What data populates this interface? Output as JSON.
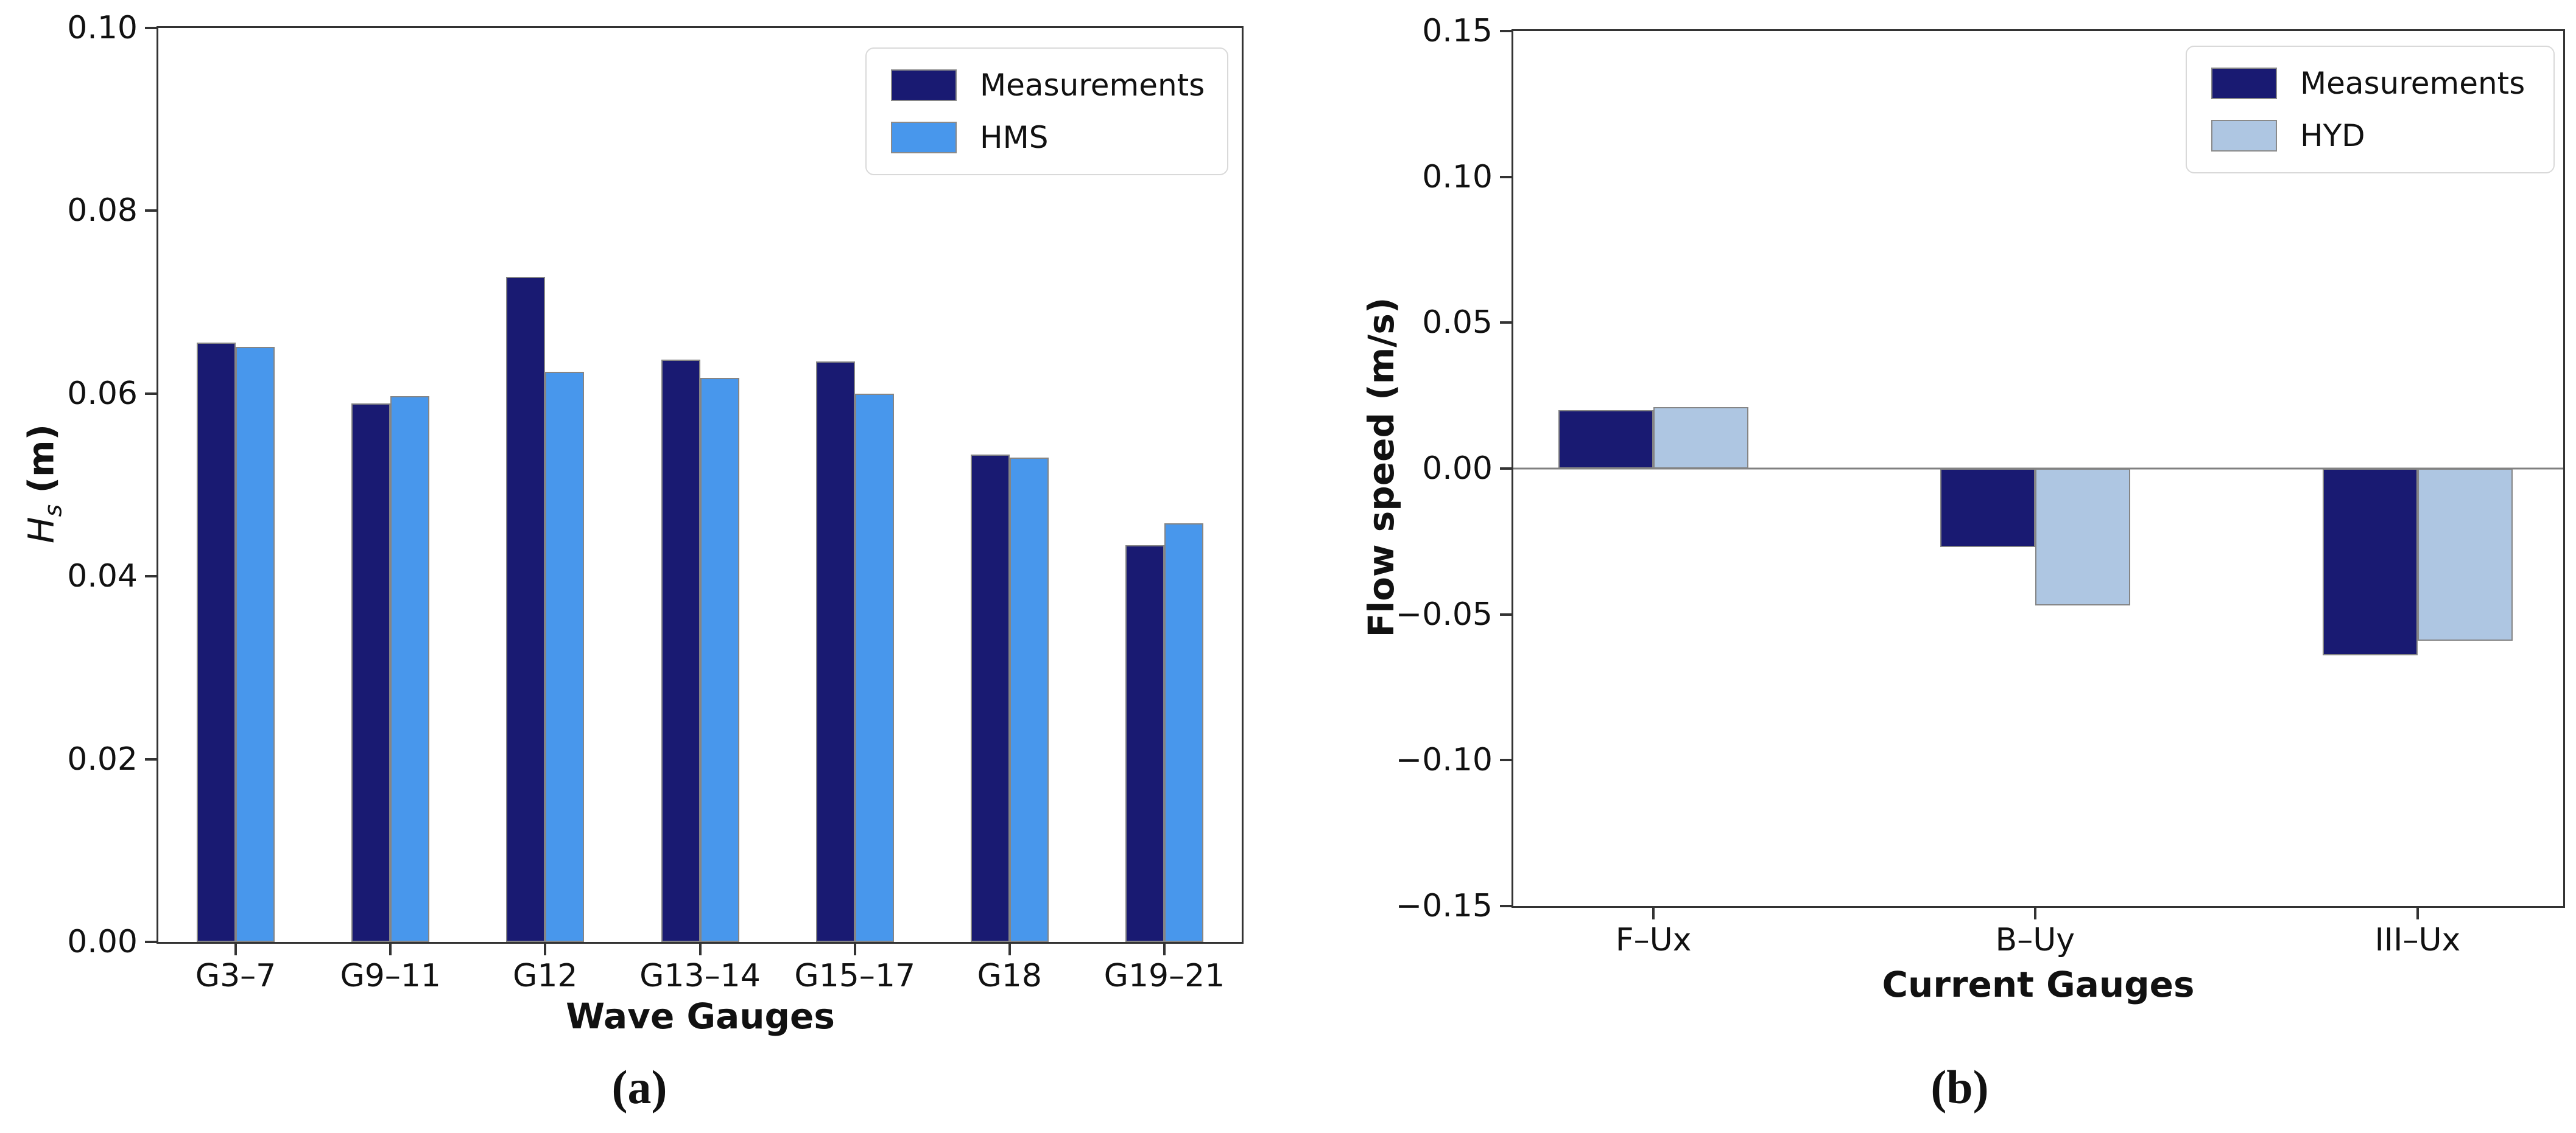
{
  "panels": {
    "a": {
      "caption": "(a)",
      "xlabel": "Wave Gauges",
      "ylabel_var": "H",
      "ylabel_sub": "s",
      "ylabel_unit": "(m)"
    },
    "b": {
      "caption": "(b)",
      "xlabel": "Current Gauges",
      "ylabel": "Flow speed (m/s)"
    }
  },
  "colors": {
    "measurements": "#191a72",
    "hms": "#4897ec",
    "hyd": "#aec6e2",
    "bar_edge": "#858585",
    "axis": "#333333",
    "zero_line": "#808080"
  },
  "chart_data": [
    {
      "type": "bar",
      "title": "",
      "categories": [
        "G3–7",
        "G9–11",
        "G12",
        "G13–14",
        "G15–17",
        "G18",
        "G19–21"
      ],
      "series": [
        {
          "name": "Measurements",
          "color": "#191a72",
          "values": [
            0.0656,
            0.0589,
            0.0728,
            0.0637,
            0.0635,
            0.0533,
            0.0434
          ]
        },
        {
          "name": "HMS",
          "color": "#4897ec",
          "values": [
            0.0651,
            0.0597,
            0.0624,
            0.0617,
            0.06,
            0.053,
            0.0458
          ]
        }
      ],
      "xlabel": "Wave Gauges",
      "ylabel": "Hs (m)",
      "ylim": [
        0.0,
        0.1
      ],
      "yticks": [
        0.0,
        0.02,
        0.04,
        0.06,
        0.08,
        0.1
      ],
      "ytick_labels": [
        "0.00",
        "0.02",
        "0.04",
        "0.06",
        "0.08",
        "0.10"
      ],
      "center_fractions": [
        0.0714,
        0.2143,
        0.3571,
        0.5,
        0.6429,
        0.7857,
        0.9286
      ],
      "grid": false,
      "zero_line": false,
      "legend_position": "upper right"
    },
    {
      "type": "bar",
      "title": "",
      "categories": [
        "F–Ux",
        "B–Uy",
        "III–Ux"
      ],
      "series": [
        {
          "name": "Measurements",
          "color": "#191a72",
          "values": [
            0.02,
            -0.027,
            -0.064
          ]
        },
        {
          "name": "HYD",
          "color": "#aec6e2",
          "values": [
            0.021,
            -0.047,
            -0.059
          ]
        }
      ],
      "xlabel": "Current Gauges",
      "ylabel": "Flow speed (m/s)",
      "ylim": [
        -0.15,
        0.15
      ],
      "yticks": [
        -0.15,
        -0.1,
        -0.05,
        0.0,
        0.05,
        0.1,
        0.15
      ],
      "ytick_labels": [
        "−0.15",
        "−0.10",
        "−0.05",
        "0.00",
        "0.05",
        "0.10",
        "0.15"
      ],
      "center_fractions": [
        0.1335,
        0.497,
        0.8613
      ],
      "grid": false,
      "zero_line": true,
      "legend_position": "upper right"
    }
  ]
}
